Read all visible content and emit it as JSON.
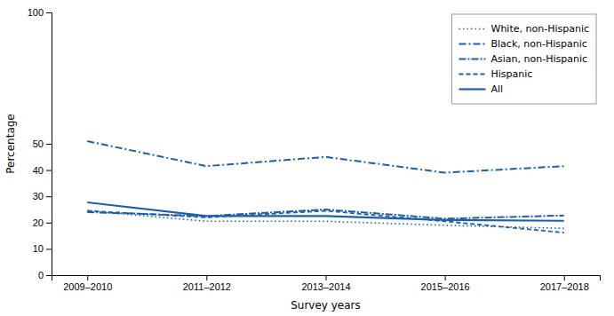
{
  "chart_data": {
    "type": "line",
    "xlabel": "Survey years",
    "ylabel": "Percentage",
    "categories": [
      "2009–2010",
      "2011–2012",
      "2013–2014",
      "2015–2016",
      "2017–2018"
    ],
    "color": "#1f5fa6",
    "series": [
      {
        "name": "White, non-Hispanic",
        "line_style": "dotted",
        "values": [
          24.5,
          20.5,
          20.5,
          19.0,
          17.8
        ]
      },
      {
        "name": "Black, non-Hispanic",
        "line_style": "dash-dot",
        "values": [
          51.0,
          41.5,
          45.0,
          39.0,
          41.5
        ]
      },
      {
        "name": "Asian, non-Hispanic",
        "line_style": "dense-dash-dot",
        "values": [
          24.0,
          22.5,
          25.0,
          21.5,
          22.7
        ]
      },
      {
        "name": "Hispanic",
        "line_style": "dashed",
        "values": [
          24.5,
          22.0,
          24.5,
          20.5,
          16.2
        ]
      },
      {
        "name": "All",
        "line_style": "solid",
        "values": [
          27.7,
          22.5,
          22.5,
          21.0,
          20.7
        ]
      }
    ],
    "ylim": [
      0,
      100
    ],
    "yticks": [
      0,
      10,
      20,
      30,
      40,
      50,
      100
    ],
    "grid": false,
    "legend": "upper right"
  }
}
